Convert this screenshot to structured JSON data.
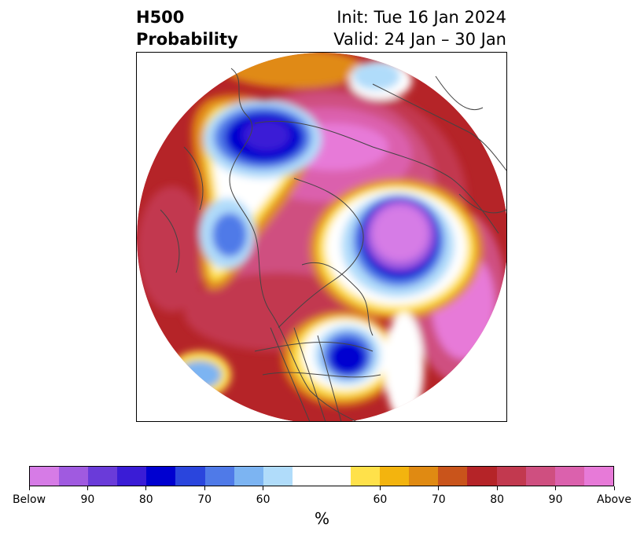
{
  "title": {
    "left_line1": "H500",
    "left_line2": "Probability",
    "right_line1": "Init: Tue 16 Jan 2024",
    "right_line2": "Valid: 24 Jan – 30 Jan"
  },
  "colorbar": {
    "colors": [
      "#d67be6",
      "#a05ae0",
      "#6a3bd9",
      "#3a1cd6",
      "#0000d0",
      "#2a45dd",
      "#4f7ae8",
      "#7cb4f2",
      "#b0dcfa",
      "#ffffff",
      "#ffffff",
      "#ffe14a",
      "#f3b40e",
      "#e08a12",
      "#c9541b",
      "#b52428",
      "#c2394f",
      "#cf4f80",
      "#db61ad",
      "#e77ad8"
    ],
    "ticks": [
      "Below",
      "90",
      "80",
      "70",
      "60",
      "60",
      "70",
      "80",
      "90",
      "Above"
    ],
    "units": "%"
  }
}
